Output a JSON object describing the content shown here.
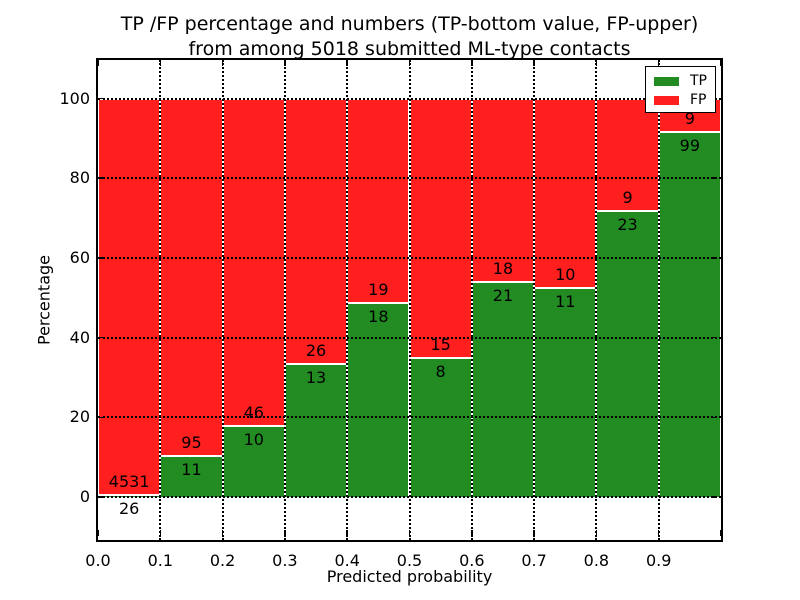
{
  "title": {
    "line1": "TP /FP percentage and numbers (TP-bottom value, FP-upper)",
    "line2": "from among 5018 submitted ML-type contacts"
  },
  "chart_data": {
    "type": "bar",
    "stacked": true,
    "normalized": "each bin scaled to 100%",
    "title": "TP /FP percentage and numbers (TP-bottom value, FP-upper) from among 5018 submitted ML-type contacts",
    "xlabel": "Predicted probability",
    "ylabel": "Percentage",
    "categories": [
      "0.0-0.1",
      "0.1-0.2",
      "0.2-0.3",
      "0.3-0.4",
      "0.4-0.5",
      "0.5-0.6",
      "0.6-0.7",
      "0.7-0.8",
      "0.8-0.9",
      "0.9-1.0"
    ],
    "series": [
      {
        "name": "TP",
        "color": "#228b22",
        "counts": [
          26,
          11,
          10,
          13,
          18,
          8,
          21,
          11,
          23,
          99
        ]
      },
      {
        "name": "FP",
        "color": "#ff1f1f",
        "counts": [
          4531,
          95,
          46,
          26,
          19,
          15,
          18,
          10,
          9,
          9
        ]
      }
    ],
    "total_contacts": 5018,
    "xticks": [
      "0.0",
      "0.1",
      "0.2",
      "0.3",
      "0.4",
      "0.5",
      "0.6",
      "0.7",
      "0.8",
      "0.9"
    ],
    "yticks": [
      0,
      20,
      40,
      60,
      80,
      100
    ],
    "xlim": [
      0.0,
      1.0
    ],
    "ylim": [
      -11,
      110
    ],
    "grid": "dotted black, horizontal at yticks and vertical at bin edges",
    "legend": {
      "position": "upper right",
      "entries": [
        "TP",
        "FP"
      ]
    },
    "bar_edge_color": "#ffffff",
    "label_color": "#000000"
  }
}
